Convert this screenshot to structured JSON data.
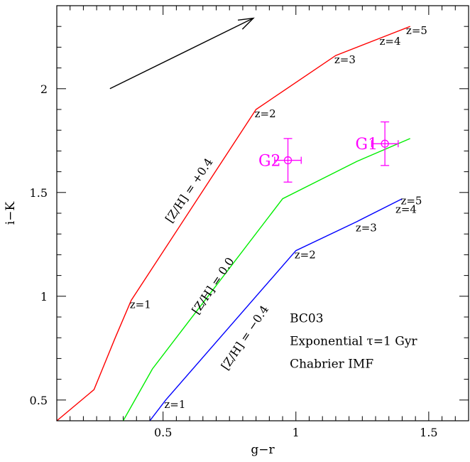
{
  "chart_data": {
    "type": "line",
    "xlabel": "g−r",
    "ylabel": "i−K",
    "xlim": [
      0.1,
      1.65
    ],
    "ylim": [
      0.4,
      2.4
    ],
    "x_ticks": [
      {
        "value": 0.5,
        "label": "0.5"
      },
      {
        "value": 1.0,
        "label": "1"
      },
      {
        "value": 1.5,
        "label": "1.5"
      }
    ],
    "y_ticks": [
      {
        "value": 0.5,
        "label": "0.5"
      },
      {
        "value": 1.0,
        "label": "1"
      },
      {
        "value": 1.5,
        "label": "1.5"
      },
      {
        "value": 2.0,
        "label": "2"
      }
    ],
    "series": [
      {
        "name": "[Z/H] = +0.4",
        "color": "#ff0000",
        "x": [
          0.1,
          0.24,
          0.32,
          0.38,
          0.85,
          1.15,
          1.35,
          1.43
        ],
        "y": [
          0.4,
          0.55,
          0.8,
          0.98,
          1.9,
          2.16,
          2.26,
          2.3
        ],
        "z_labels": [
          {
            "text": "z=1",
            "x": 0.38,
            "y": 0.98
          },
          {
            "text": "z=2",
            "x": 0.85,
            "y": 1.9
          },
          {
            "text": "z=3",
            "x": 1.15,
            "y": 2.16
          },
          {
            "text": "z=4",
            "x": 1.32,
            "y": 2.25
          },
          {
            "text": "z=5",
            "x": 1.42,
            "y": 2.3
          }
        ],
        "label_pos": {
          "x": 0.61,
          "y": 1.5
        }
      },
      {
        "name": "[Z/H] = 0.0",
        "color": "#00ee00",
        "x": [
          0.35,
          0.46,
          0.95,
          1.23,
          1.43
        ],
        "y": [
          0.4,
          0.65,
          1.47,
          1.65,
          1.76
        ],
        "z_labels": [],
        "label_pos": {
          "x": 0.7,
          "y": 1.04
        }
      },
      {
        "name": "[Z/H] = −0.4",
        "color": "#0000ff",
        "x": [
          0.45,
          0.51,
          1.0,
          1.23,
          1.4
        ],
        "y": [
          0.4,
          0.5,
          1.22,
          1.36,
          1.47
        ],
        "z_labels": [
          {
            "text": "z=1",
            "x": 0.51,
            "y": 0.5
          },
          {
            "text": "z=2",
            "x": 1.0,
            "y": 1.22
          },
          {
            "text": "z=3",
            "x": 1.23,
            "y": 1.35
          },
          {
            "text": "z=4",
            "x": 1.38,
            "y": 1.44
          },
          {
            "text": "z=5",
            "x": 1.4,
            "y": 1.48
          }
        ],
        "label_pos": {
          "x": 0.82,
          "y": 0.79
        }
      }
    ],
    "points": [
      {
        "name": "G1",
        "x": 1.335,
        "y": 1.735,
        "xerr": 0.05,
        "yerr": 0.105,
        "color": "#ff00ff"
      },
      {
        "name": "G2",
        "x": 0.97,
        "y": 1.655,
        "xerr": 0.05,
        "yerr": 0.105,
        "color": "#ff00ff"
      }
    ],
    "arrow": {
      "x1": 0.3,
      "y1": 2.0,
      "x2": 0.84,
      "y2": 2.34
    },
    "annotation_lines": [
      "BC03",
      "Exponential τ=1 Gyr",
      "Chabrier IMF"
    ],
    "annotation_pos": {
      "x": 0.95,
      "y": 0.97
    }
  }
}
